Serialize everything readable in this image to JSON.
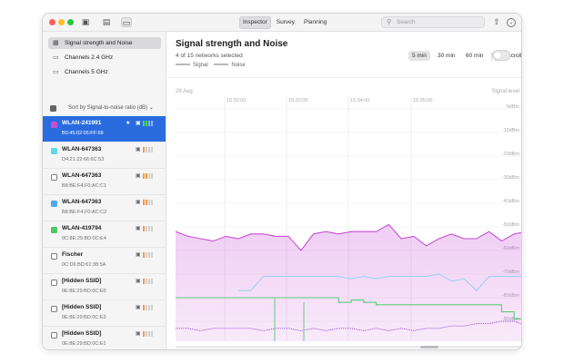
{
  "toolbar": {
    "tabs": [
      {
        "label": "Inspector",
        "active": true
      },
      {
        "label": "Survey",
        "active": false
      },
      {
        "label": "Planning",
        "active": false
      }
    ],
    "search_placeholder": "Search"
  },
  "sidebar": {
    "nav": [
      {
        "label": "Signal strength and Noise",
        "selected": true
      },
      {
        "label": "Channels 2.4 GHz",
        "selected": false
      },
      {
        "label": "Channels 5 GHz",
        "selected": false
      }
    ],
    "sort_label": "Sort by Signal-to-noise ratio (dB)",
    "networks": [
      {
        "name": "WLAN-241991",
        "mac": "B0:45:02:05:FF:69",
        "selected": true,
        "checked": true,
        "check_color": "#c84fd8",
        "pinned": true,
        "bars": [
          1,
          1,
          0,
          0
        ],
        "bar_color": "#4cd964"
      },
      {
        "name": "WLAN-647363",
        "mac": "D4:21:22:66:6C:53",
        "selected": false,
        "checked": true,
        "check_color": "#5fd8e8",
        "pinned": false,
        "bars": [
          1,
          0,
          0,
          0
        ],
        "bar_color": "#f09a4a"
      },
      {
        "name": "WLAN-647363",
        "mac": "B8:BE:F4:F0:AC:C1",
        "selected": false,
        "checked": false,
        "check_color": "",
        "pinned": false,
        "bars": [
          1,
          1,
          0,
          0
        ],
        "bar_color": "#f09a4a"
      },
      {
        "name": "WLAN-647363",
        "mac": "B8:BE:F4:F0:AC:C2",
        "selected": false,
        "checked": true,
        "check_color": "#4ea8f0",
        "pinned": false,
        "bars": [
          1,
          1,
          0,
          0
        ],
        "bar_color": "#f09a4a"
      },
      {
        "name": "WLAN-419794",
        "mac": "0C:8E:29:BD:0C:E4",
        "selected": false,
        "checked": true,
        "check_color": "#4cc764",
        "pinned": false,
        "bars": [
          1,
          0,
          0,
          0
        ],
        "bar_color": "#f09a4a"
      },
      {
        "name": "Fischer",
        "mac": "0C:D6:BD:61:38:5A",
        "selected": false,
        "checked": false,
        "check_color": "",
        "pinned": false,
        "bars": [
          1,
          0,
          0,
          0
        ],
        "bar_color": "#f09a4a"
      },
      {
        "name": "[Hidden SSID]",
        "mac": "0E:8E:29:BD:0C:E0",
        "selected": false,
        "checked": false,
        "check_color": "",
        "pinned": false,
        "bars": [
          1,
          0,
          0,
          0
        ],
        "bar_color": "#f09a4a"
      },
      {
        "name": "[Hidden SSID]",
        "mac": "0E:8E:29:BD:0C:E3",
        "selected": false,
        "checked": false,
        "check_color": "",
        "pinned": false,
        "bars": [
          1,
          0,
          0,
          0
        ],
        "bar_color": "#f09a4a"
      },
      {
        "name": "[Hidden SSID]",
        "mac": "0E:8E:29:BD:0C:E1",
        "selected": false,
        "checked": false,
        "check_color": "",
        "pinned": false,
        "bars": [
          1,
          0,
          0,
          0
        ],
        "bar_color": "#f09a4a"
      },
      {
        "name": "[Hidden SSID]",
        "mac": "",
        "selected": false,
        "checked": false,
        "check_color": "",
        "pinned": false,
        "bars": [
          0,
          0,
          0,
          0
        ],
        "bar_color": "#c8c8cc"
      }
    ]
  },
  "main": {
    "title": "Signal strength and Noise",
    "subtitle": "4 of 15 networks selected",
    "legend": [
      "Signal",
      "Noise"
    ],
    "ranges": [
      {
        "label": "5 min",
        "active": true
      },
      {
        "label": "30 min",
        "active": false
      },
      {
        "label": "60 min",
        "active": false
      }
    ],
    "autoscroll_label": "Autoscroll"
  },
  "chart_data": {
    "type": "line",
    "date_label": "28 Aug",
    "x_ticks": [
      "15:32:00",
      "15:33:00",
      "15:34:00",
      "15:35:00"
    ],
    "y_axis_title": "Signal level",
    "y_ticks": [
      "0dBm",
      "-10dBm",
      "-20dBm",
      "-30dBm",
      "-40dBm",
      "-50dBm",
      "-60dBm",
      "-70dBm",
      "-80dBm",
      "-90dBm"
    ],
    "ylim": [
      -100,
      0
    ],
    "series": [
      {
        "color": "#c84fd8",
        "fill": true,
        "values": [
          -52,
          -54,
          -55,
          -56,
          -54,
          -55,
          -53,
          -53,
          -54,
          -54,
          -60,
          -53,
          -52,
          -53,
          -52,
          -52,
          -52,
          -49,
          -55,
          -54,
          -58,
          -55,
          -53,
          -55,
          -55,
          -52,
          -56,
          -53,
          -52
        ]
      },
      {
        "color": "#9fd4f0",
        "fill": false,
        "values": [
          null,
          null,
          null,
          null,
          null,
          -77,
          -77,
          -71,
          -71,
          -71,
          -71,
          -71,
          -71,
          -71,
          -72,
          -71,
          -72,
          -71,
          -71,
          -71,
          -71,
          -70,
          -73,
          -72,
          -77,
          -71,
          -71,
          -71,
          -71
        ]
      },
      {
        "color": "#5ecb7c",
        "fill": false,
        "values": [
          -80,
          -80,
          -80,
          -80,
          -80,
          -80,
          -80,
          -80,
          -80,
          -80,
          -80,
          -80,
          -80,
          -82,
          -81,
          -82,
          -83,
          -83,
          -83,
          -83,
          -83,
          -83,
          -83,
          -83,
          -83,
          -83,
          -86,
          -89,
          -89
        ]
      },
      {
        "color": "#8a3fc8",
        "fill": false,
        "dotted": true,
        "values": [
          -93,
          -93,
          -94,
          -93,
          -93,
          -93,
          -93,
          -94,
          -93,
          -93,
          -94,
          -93,
          -94,
          -93,
          -93,
          -94,
          -93,
          -94,
          -93,
          -94,
          -93,
          -93,
          -92,
          -92,
          -91,
          -91,
          -90,
          -90,
          -92
        ]
      }
    ],
    "grid": true
  }
}
